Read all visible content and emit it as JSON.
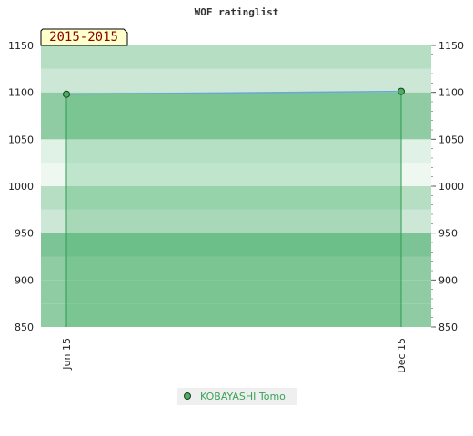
{
  "chart_data": {
    "type": "line",
    "title": "WOF ratinglist",
    "period_label": "2015-2015",
    "categories": [
      "Jun 15",
      "Dec 15"
    ],
    "series": [
      {
        "name": "KOBAYASHI Tomo",
        "values": [
          1098,
          1101
        ]
      }
    ],
    "ylim": [
      850,
      1150
    ],
    "yticks": [
      850,
      900,
      950,
      1000,
      1050,
      1100,
      1150
    ],
    "xlabel": "",
    "ylabel": "",
    "grid": true,
    "legend": "bottom-center"
  },
  "colors": {
    "band_dark": "#7cc495",
    "band_mid": "#8fcca3",
    "band_light": "#b5dec3",
    "band_lighter": "#cde7d6",
    "band_lightest": "#e0f1e6",
    "band_faint": "#eef8f1",
    "area_fill": "#48b26c",
    "area_stroke": "#2e9a52",
    "line": "#6aa6d8",
    "marker_fill": "#4caf60",
    "marker_stroke": "#1a3d22",
    "period_bg": "#ffffcc",
    "legend_text": "#3aa356",
    "legend_bg": "#efefef"
  }
}
